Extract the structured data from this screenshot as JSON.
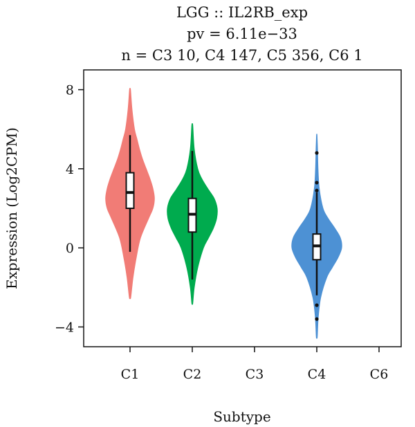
{
  "chart_data": {
    "type": "violin",
    "title": "LGG :: IL2RB_exp",
    "subtitle_pvalue": "pv = 6.11e−33",
    "subtitle_n": "n = C3 10, C4 147, C5 356, C6 1",
    "xlabel": "Subtype",
    "ylabel": "Expression (Log2CPM)",
    "ylim": [
      -5,
      9
    ],
    "yticks": [
      8,
      4,
      0,
      -4
    ],
    "ytick_labels": [
      "8",
      "4",
      "0",
      "−4"
    ],
    "categories": [
      "C1",
      "C2",
      "C3",
      "C4",
      "C6"
    ],
    "grid": false,
    "series": [
      {
        "category": "C1",
        "color": "#F17C76",
        "min": -2.5,
        "max": 8.0,
        "whisker_low": -0.2,
        "whisker_high": 5.7,
        "q1": 2.0,
        "median": 2.8,
        "q3": 3.8,
        "outliers": [],
        "density_y": [
          -2.5,
          -1.5,
          -0.5,
          0.5,
          1.5,
          2.0,
          2.5,
          3.0,
          3.5,
          4.0,
          4.5,
          5.0,
          5.5,
          6.0,
          7.0,
          8.0
        ],
        "density_w": [
          0.03,
          0.12,
          0.25,
          0.42,
          0.75,
          0.92,
          0.98,
          0.92,
          0.8,
          0.65,
          0.5,
          0.38,
          0.28,
          0.18,
          0.08,
          0.02
        ]
      },
      {
        "category": "C2",
        "color": "#00AB4E",
        "min": -2.8,
        "max": 6.2,
        "whisker_low": -1.6,
        "whisker_high": 4.9,
        "q1": 0.8,
        "median": 1.7,
        "q3": 2.5,
        "outliers": [],
        "density_y": [
          -2.8,
          -2.0,
          -1.0,
          0.0,
          0.5,
          1.0,
          1.5,
          2.0,
          2.5,
          3.0,
          3.5,
          4.0,
          5.0,
          6.2
        ],
        "density_w": [
          0.02,
          0.08,
          0.22,
          0.45,
          0.65,
          0.85,
          0.98,
          1.0,
          0.88,
          0.62,
          0.38,
          0.22,
          0.08,
          0.02
        ]
      },
      {
        "category": "C4",
        "color": "#4D91D4",
        "min": -4.5,
        "max": 5.7,
        "whisker_low": -2.4,
        "whisker_high": 2.8,
        "q1": -0.6,
        "median": 0.1,
        "q3": 0.7,
        "outliers": [
          4.8,
          3.3,
          2.9,
          -2.9,
          -3.6
        ],
        "density_y": [
          -4.5,
          -3.5,
          -2.5,
          -1.5,
          -1.0,
          -0.5,
          0.0,
          0.5,
          1.0,
          1.5,
          2.0,
          3.0,
          4.0,
          5.0,
          5.7
        ],
        "density_w": [
          0.02,
          0.06,
          0.16,
          0.4,
          0.62,
          0.85,
          1.0,
          0.95,
          0.72,
          0.45,
          0.25,
          0.1,
          0.05,
          0.03,
          0.01
        ]
      }
    ]
  }
}
